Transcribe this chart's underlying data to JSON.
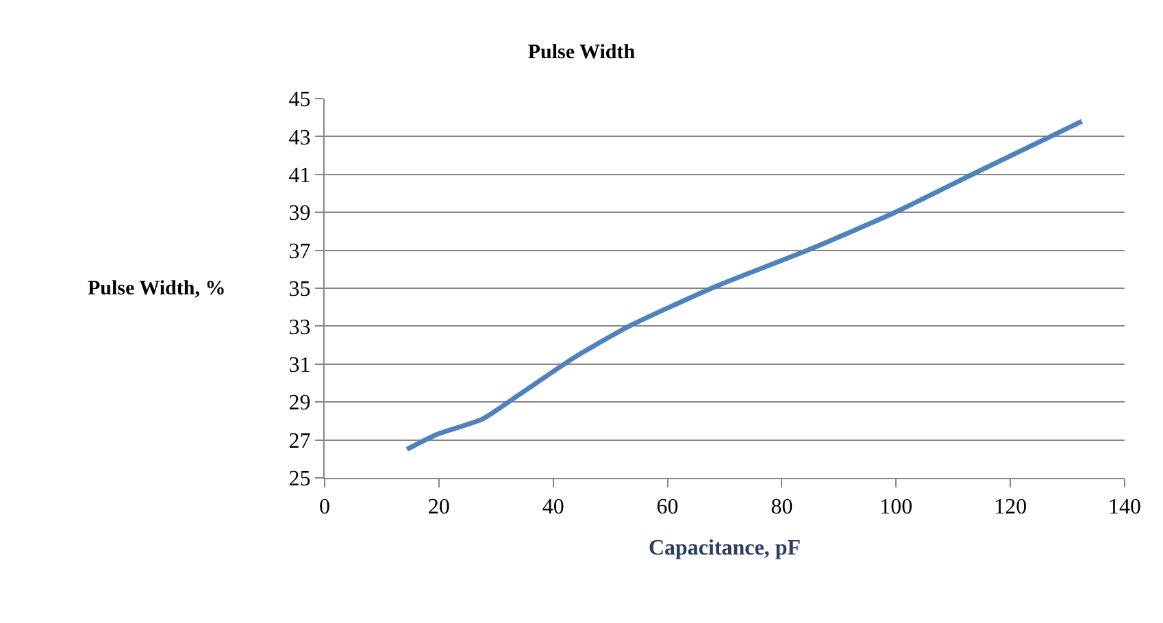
{
  "chart_data": {
    "type": "line",
    "title": "Pulse Width",
    "xlabel": "Capacitance, pF",
    "ylabel": "Pulse Width, %",
    "x": [
      14.4,
      19.7,
      27.6,
      34.1,
      43.7,
      53.3,
      68.5,
      84.5,
      99.8,
      114,
      132.5
    ],
    "series": [
      {
        "color": "#4f81bd",
        "values": [
          26.5,
          27.3,
          28.1,
          29.4,
          31.35,
          33.0,
          35.1,
          37.0,
          39.0,
          41.1,
          43.8
        ]
      }
    ],
    "xlim": [
      0,
      140
    ],
    "xticks": [
      0,
      20,
      40,
      60,
      80,
      100,
      120,
      140
    ],
    "ylim": [
      25,
      45
    ],
    "yticks": [
      25,
      27,
      29,
      31,
      33,
      35,
      37,
      39,
      41,
      43,
      45
    ],
    "grid": "y",
    "legend": false,
    "marker": "none",
    "line_style": "solid"
  }
}
